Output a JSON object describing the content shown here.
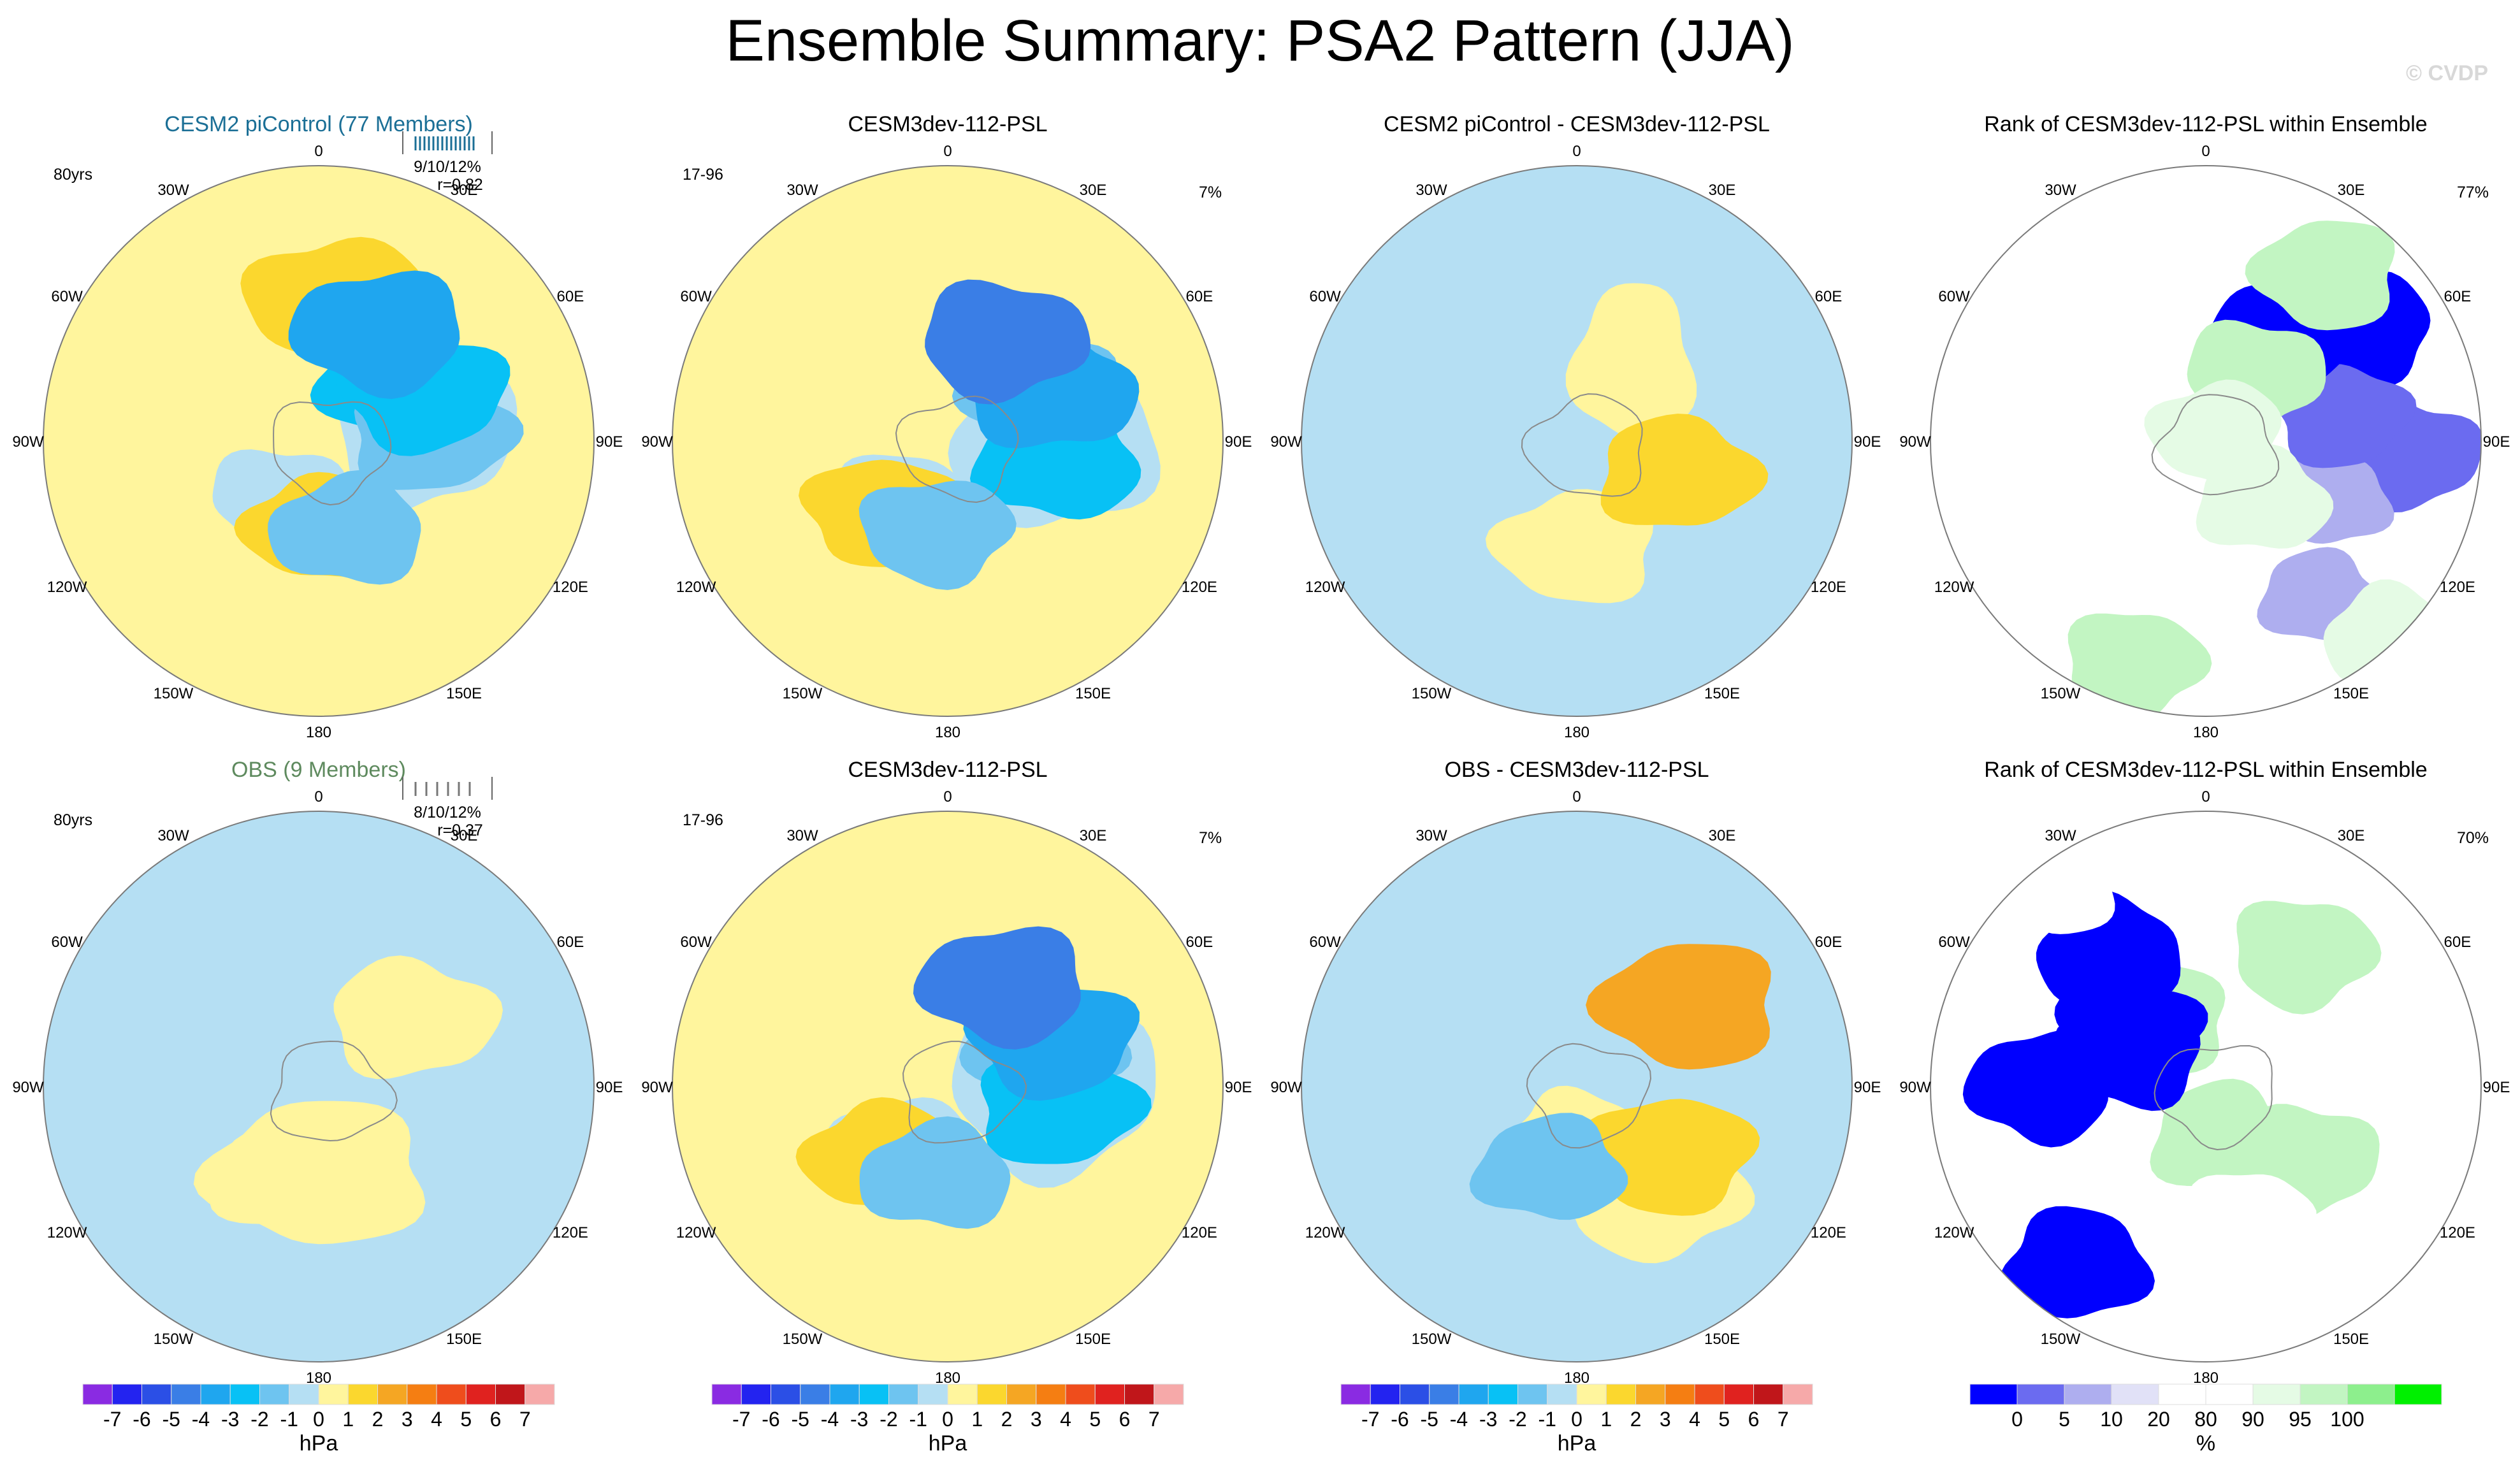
{
  "title": "Ensemble Summary: PSA2 Pattern (JJA)",
  "credit": "© CVDP",
  "colors": {
    "hpa_scale": [
      "#8a2be2",
      "#2323f0",
      "#2b4fe6",
      "#3a7ee6",
      "#1fa6ef",
      "#08c1f5",
      "#6ec4f0",
      "#b5dff3",
      "#fff59d",
      "#fbd72e",
      "#f5a623",
      "#f57e12",
      "#ef4d1c",
      "#e0221f",
      "#c0161a",
      "#f6a9a9"
    ],
    "rank_scale": [
      "#0000ff",
      "#6b6bf0",
      "#aeaeef",
      "#e1e1f7",
      "#ffffff",
      "#ffffff",
      "#e5fbe5",
      "#c2f5c2",
      "#8def8d",
      "#00f000"
    ],
    "ocean_line": "#7f7f7f",
    "land_line": "#8a8a8a",
    "members_title_top": "#1b6f96",
    "members_title_bottom": "#5e8a5e"
  },
  "lon_labels": [
    "0",
    "30E",
    "60E",
    "90E",
    "120E",
    "150E",
    "180",
    "150W",
    "120W",
    "90W",
    "60W",
    "30W"
  ],
  "chart_data": [
    {
      "id": "p11",
      "type": "polar_contour_map",
      "title": "CESM2 piControl (77 Members)",
      "title_color": "#1b6f96",
      "left_label": "80yrs",
      "right_label": "",
      "box_lines": [
        "9/10/12%",
        "r=0.82"
      ],
      "box_style": "blue",
      "fills": [
        {
          "v": 0.5,
          "d": [
            0,
            0.8
          ]
        },
        {
          "v": -0.5,
          "d": [
            0.22,
            -0.55,
            0.4,
            0.55,
            0.45
          ]
        },
        {
          "v": -0.5,
          "d": [
            0.6,
            0.35
          ]
        },
        {
          "v": 1.5,
          "d": [
            0.02,
            0.73
          ]
        },
        {
          "v": 1.5,
          "d": [
            0.5,
            0.45
          ]
        },
        {
          "v": -2.5,
          "d": [
            0.14,
            -0.5
          ]
        },
        {
          "v": -1.5,
          "d": [
            0.24,
            -0.58
          ]
        },
        {
          "v": -2.5,
          "d": [
            0.18,
            -0.6
          ]
        },
        {
          "v": -3.5,
          "d": [
            0.08,
            -0.65
          ]
        },
        {
          "v": -1.5,
          "d": [
            0.45,
            0.49
          ]
        }
      ]
    },
    {
      "id": "p12",
      "type": "polar_contour_map",
      "title": "CESM3dev-112-PSL",
      "title_color": "#000000",
      "left_label": "17-96",
      "right_label": "7%",
      "box_lines": [],
      "fills": [
        {
          "v": 0.5,
          "d": [
            0,
            0.78
          ]
        },
        {
          "v": -0.5,
          "d": [
            0.25,
            -0.55,
            0.5,
            0.55,
            0.5
          ]
        },
        {
          "v": -0.5,
          "d": [
            0.6,
            0.4
          ]
        },
        {
          "v": 1.5,
          "d": [
            0.62,
            0.5
          ]
        },
        {
          "v": -1.5,
          "d": [
            0.18,
            -0.55
          ]
        },
        {
          "v": -2.5,
          "d": [
            0.28,
            -0.58
          ]
        },
        {
          "v": -3.5,
          "d": [
            0.18,
            -0.6
          ]
        },
        {
          "v": -5,
          "d": [
            0.08,
            -0.6
          ]
        },
        {
          "v": -1.5,
          "d": [
            0.52,
            0.47
          ]
        }
      ]
    },
    {
      "id": "p13",
      "type": "polar_contour_map",
      "title": "CESM2 piControl - CESM3dev-112-PSL",
      "title_color": "#000000",
      "left_label": "",
      "right_label": "",
      "box_lines": [],
      "fills": [
        {
          "v": -0.5,
          "d": [
            0.62,
            0.7
          ]
        },
        {
          "v": 0.5,
          "d": [
            0.5,
            0.55
          ]
        },
        {
          "v": 0.5,
          "d": [
            0.1,
            0.5,
            0.2,
            0.45,
            0.4
          ]
        },
        {
          "v": 1.5,
          "d": [
            0.3,
            0.55
          ]
        }
      ]
    },
    {
      "id": "p14",
      "type": "polar_rank_map",
      "title": "Rank of CESM3dev-112-PSL within Ensemble",
      "title_color": "#000000",
      "left_label": "",
      "right_label": "77%",
      "box_lines": [],
      "blobs": [
        {
          "v": 17,
          "d": [
            0.4,
            0.7
          ]
        },
        {
          "v": 5,
          "d": [
            0.26,
            0.75
          ]
        },
        {
          "v": 2,
          "d": [
            0.15,
            0.7
          ]
        },
        {
          "v": 17,
          "d": [
            0.32,
            0.5
          ]
        },
        {
          "v": 7,
          "d": [
            0.22,
            0.5
          ]
        },
        {
          "v": 2,
          "d": [
            0.1,
            0.5
          ]
        },
        {
          "v": 92,
          "d": [
            0.38,
            0.98
          ]
        },
        {
          "v": 97,
          "d": [
            0.55,
            0.85
          ]
        },
        {
          "v": 99.5,
          "d": [
            0.1,
            0.75
          ]
        },
        {
          "v": 92,
          "d": [
            0.38,
            0.3
          ]
        },
        {
          "v": 97,
          "d": [
            0.1,
            0.3
          ]
        },
        {
          "v": 92,
          "d": [
            0.15,
            0.05
          ]
        }
      ]
    },
    {
      "id": "p21",
      "type": "polar_contour_map",
      "title": "OBS (9 Members)",
      "title_color": "#5e8a5e",
      "left_label": "80yrs",
      "right_label": "",
      "box_lines": [
        "8/10/12%",
        "r=0.37"
      ],
      "box_style": "gray",
      "fills": [
        {
          "v": -0.5,
          "d": [
            0,
            0.55
          ]
        },
        {
          "v": 0.5,
          "d": [
            0.5,
            0.45,
            0.55,
            0.4
          ]
        },
        {
          "v": 0.5,
          "d": [
            0.55,
            0.5
          ]
        },
        {
          "v": 0.5,
          "d": [
            0.15,
            0.6
          ]
        }
      ]
    },
    {
      "id": "p22",
      "type": "polar_contour_map",
      "title": "CESM3dev-112-PSL",
      "title_color": "#000000",
      "left_label": "17-96",
      "right_label": "7%",
      "box_lines": [],
      "fills": [
        {
          "v": 0.5,
          "d": [
            0,
            0.78
          ]
        },
        {
          "v": -0.5,
          "d": [
            0.25,
            -0.55,
            0.5,
            0.55,
            0.5
          ]
        },
        {
          "v": -0.5,
          "d": [
            0.6,
            0.4
          ]
        },
        {
          "v": 1.5,
          "d": [
            0.62,
            0.5
          ]
        },
        {
          "v": -1.5,
          "d": [
            0.18,
            -0.55
          ]
        },
        {
          "v": -2.5,
          "d": [
            0.28,
            -0.58
          ]
        },
        {
          "v": -3.5,
          "d": [
            0.18,
            -0.6
          ]
        },
        {
          "v": -5,
          "d": [
            0.08,
            -0.6
          ]
        },
        {
          "v": -1.5,
          "d": [
            0.52,
            0.47
          ]
        }
      ]
    },
    {
      "id": "p23",
      "type": "polar_contour_map",
      "title": "OBS - CESM3dev-112-PSL",
      "title_color": "#000000",
      "left_label": "",
      "right_label": "",
      "box_lines": [],
      "fills": [
        {
          "v": -0.5,
          "d": [
            0,
            0.7
          ]
        },
        {
          "v": 0.5,
          "d": [
            0.5,
            0.25
          ]
        },
        {
          "v": 0.5,
          "d": [
            0.4,
            0.7
          ]
        },
        {
          "v": 1.5,
          "d": [
            0.35,
            -0.6
          ]
        },
        {
          "v": 2.5,
          "d": [
            0.15,
            -0.72
          ]
        },
        {
          "v": -1.5,
          "d": [
            0.55,
            -0.45
          ]
        }
      ]
    },
    {
      "id": "p24",
      "type": "polar_rank_map",
      "title": "Rank of CESM3dev-112-PSL within Ensemble",
      "title_color": "#000000",
      "left_label": "",
      "right_label": "70%",
      "box_lines": [],
      "blobs": [
        {
          "v": 99.5,
          "d": [
            0.6,
            -0.6
          ]
        },
        {
          "v": 99.5,
          "d": [
            0.4,
            -0.3
          ]
        },
        {
          "v": 99.5,
          "d": [
            0.45,
            0.2
          ]
        },
        {
          "v": 99.5,
          "d": [
            0.35,
            0.45
          ]
        },
        {
          "v": 0,
          "d": [
            0.32,
            -0.3
          ]
        },
        {
          "v": 0,
          "d": [
            0.6,
            0.8
          ]
        },
        {
          "v": 0,
          "d": [
            0.85,
            0.35
          ]
        },
        {
          "v": 0,
          "d": [
            0.75,
            0.6
          ]
        },
        {
          "v": 0,
          "d": [
            0.9,
            0.6
          ]
        },
        {
          "v": 85,
          "d": [
            0.45,
            0.5
          ]
        },
        {
          "v": 85,
          "d": [
            0.9,
            0.9
          ]
        }
      ]
    }
  ],
  "colorbars": [
    {
      "id": "cb1",
      "type": "hpa",
      "labels": [
        "-7",
        "-6",
        "-5",
        "-4",
        "-3",
        "-2",
        "-1",
        "0",
        "1",
        "2",
        "3",
        "4",
        "5",
        "6",
        "7"
      ],
      "unit": "hPa"
    },
    {
      "id": "cb2",
      "type": "hpa",
      "labels": [
        "-7",
        "-6",
        "-5",
        "-4",
        "-3",
        "-2",
        "-1",
        "0",
        "1",
        "2",
        "3",
        "4",
        "5",
        "6",
        "7"
      ],
      "unit": "hPa"
    },
    {
      "id": "cb3",
      "type": "hpa",
      "labels": [
        "-7",
        "-6",
        "-5",
        "-4",
        "-3",
        "-2",
        "-1",
        "0",
        "1",
        "2",
        "3",
        "4",
        "5",
        "6",
        "7"
      ],
      "unit": "hPa"
    },
    {
      "id": "cb4",
      "type": "rank",
      "labels": [
        "0",
        "5",
        "10",
        "20",
        "80",
        "90",
        "95",
        "100"
      ],
      "unit": "%"
    }
  ]
}
